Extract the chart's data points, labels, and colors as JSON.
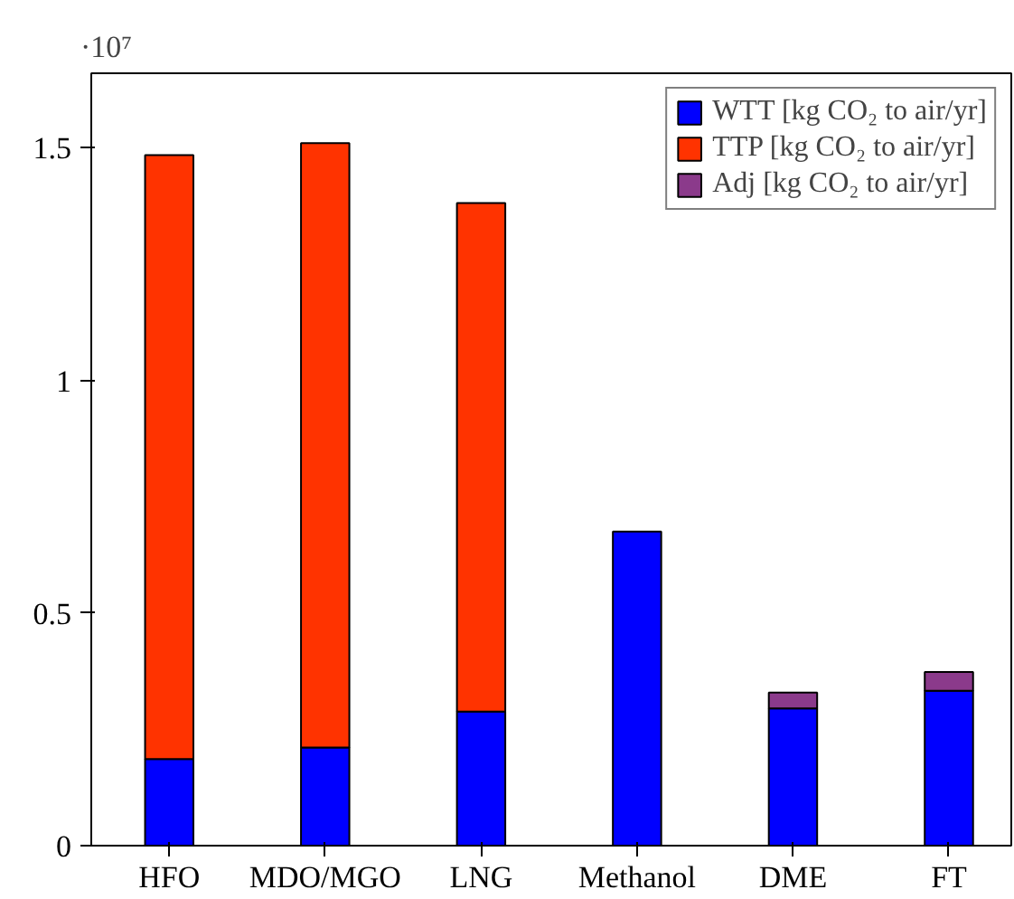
{
  "chart_data": {
    "type": "bar",
    "stacked": true,
    "categories": [
      "HFO",
      "MDO/MGO",
      "LNG",
      "Methanol",
      "DME",
      "FT"
    ],
    "series": [
      {
        "name": "WTT [kg CO₂ to air/yr]",
        "color": "#0000ff",
        "values": [
          0.186,
          0.211,
          0.288,
          0.675,
          0.295,
          0.333
        ]
      },
      {
        "name": "TTP [kg CO₂ to air/yr]",
        "color": "#ff3300",
        "values": [
          1.298,
          1.299,
          1.093,
          null,
          null,
          null
        ]
      },
      {
        "name": "Adj [kg CO₂ to air/yr]",
        "color": "#8b3a8b",
        "values": [
          null,
          null,
          null,
          null,
          0.034,
          0.04
        ]
      }
    ],
    "ylim": [
      0,
      1.66
    ],
    "yticks": [
      0,
      0.5,
      1,
      1.5
    ],
    "annotations": [
      "·10⁷"
    ],
    "grid": false,
    "legend": "top right"
  }
}
